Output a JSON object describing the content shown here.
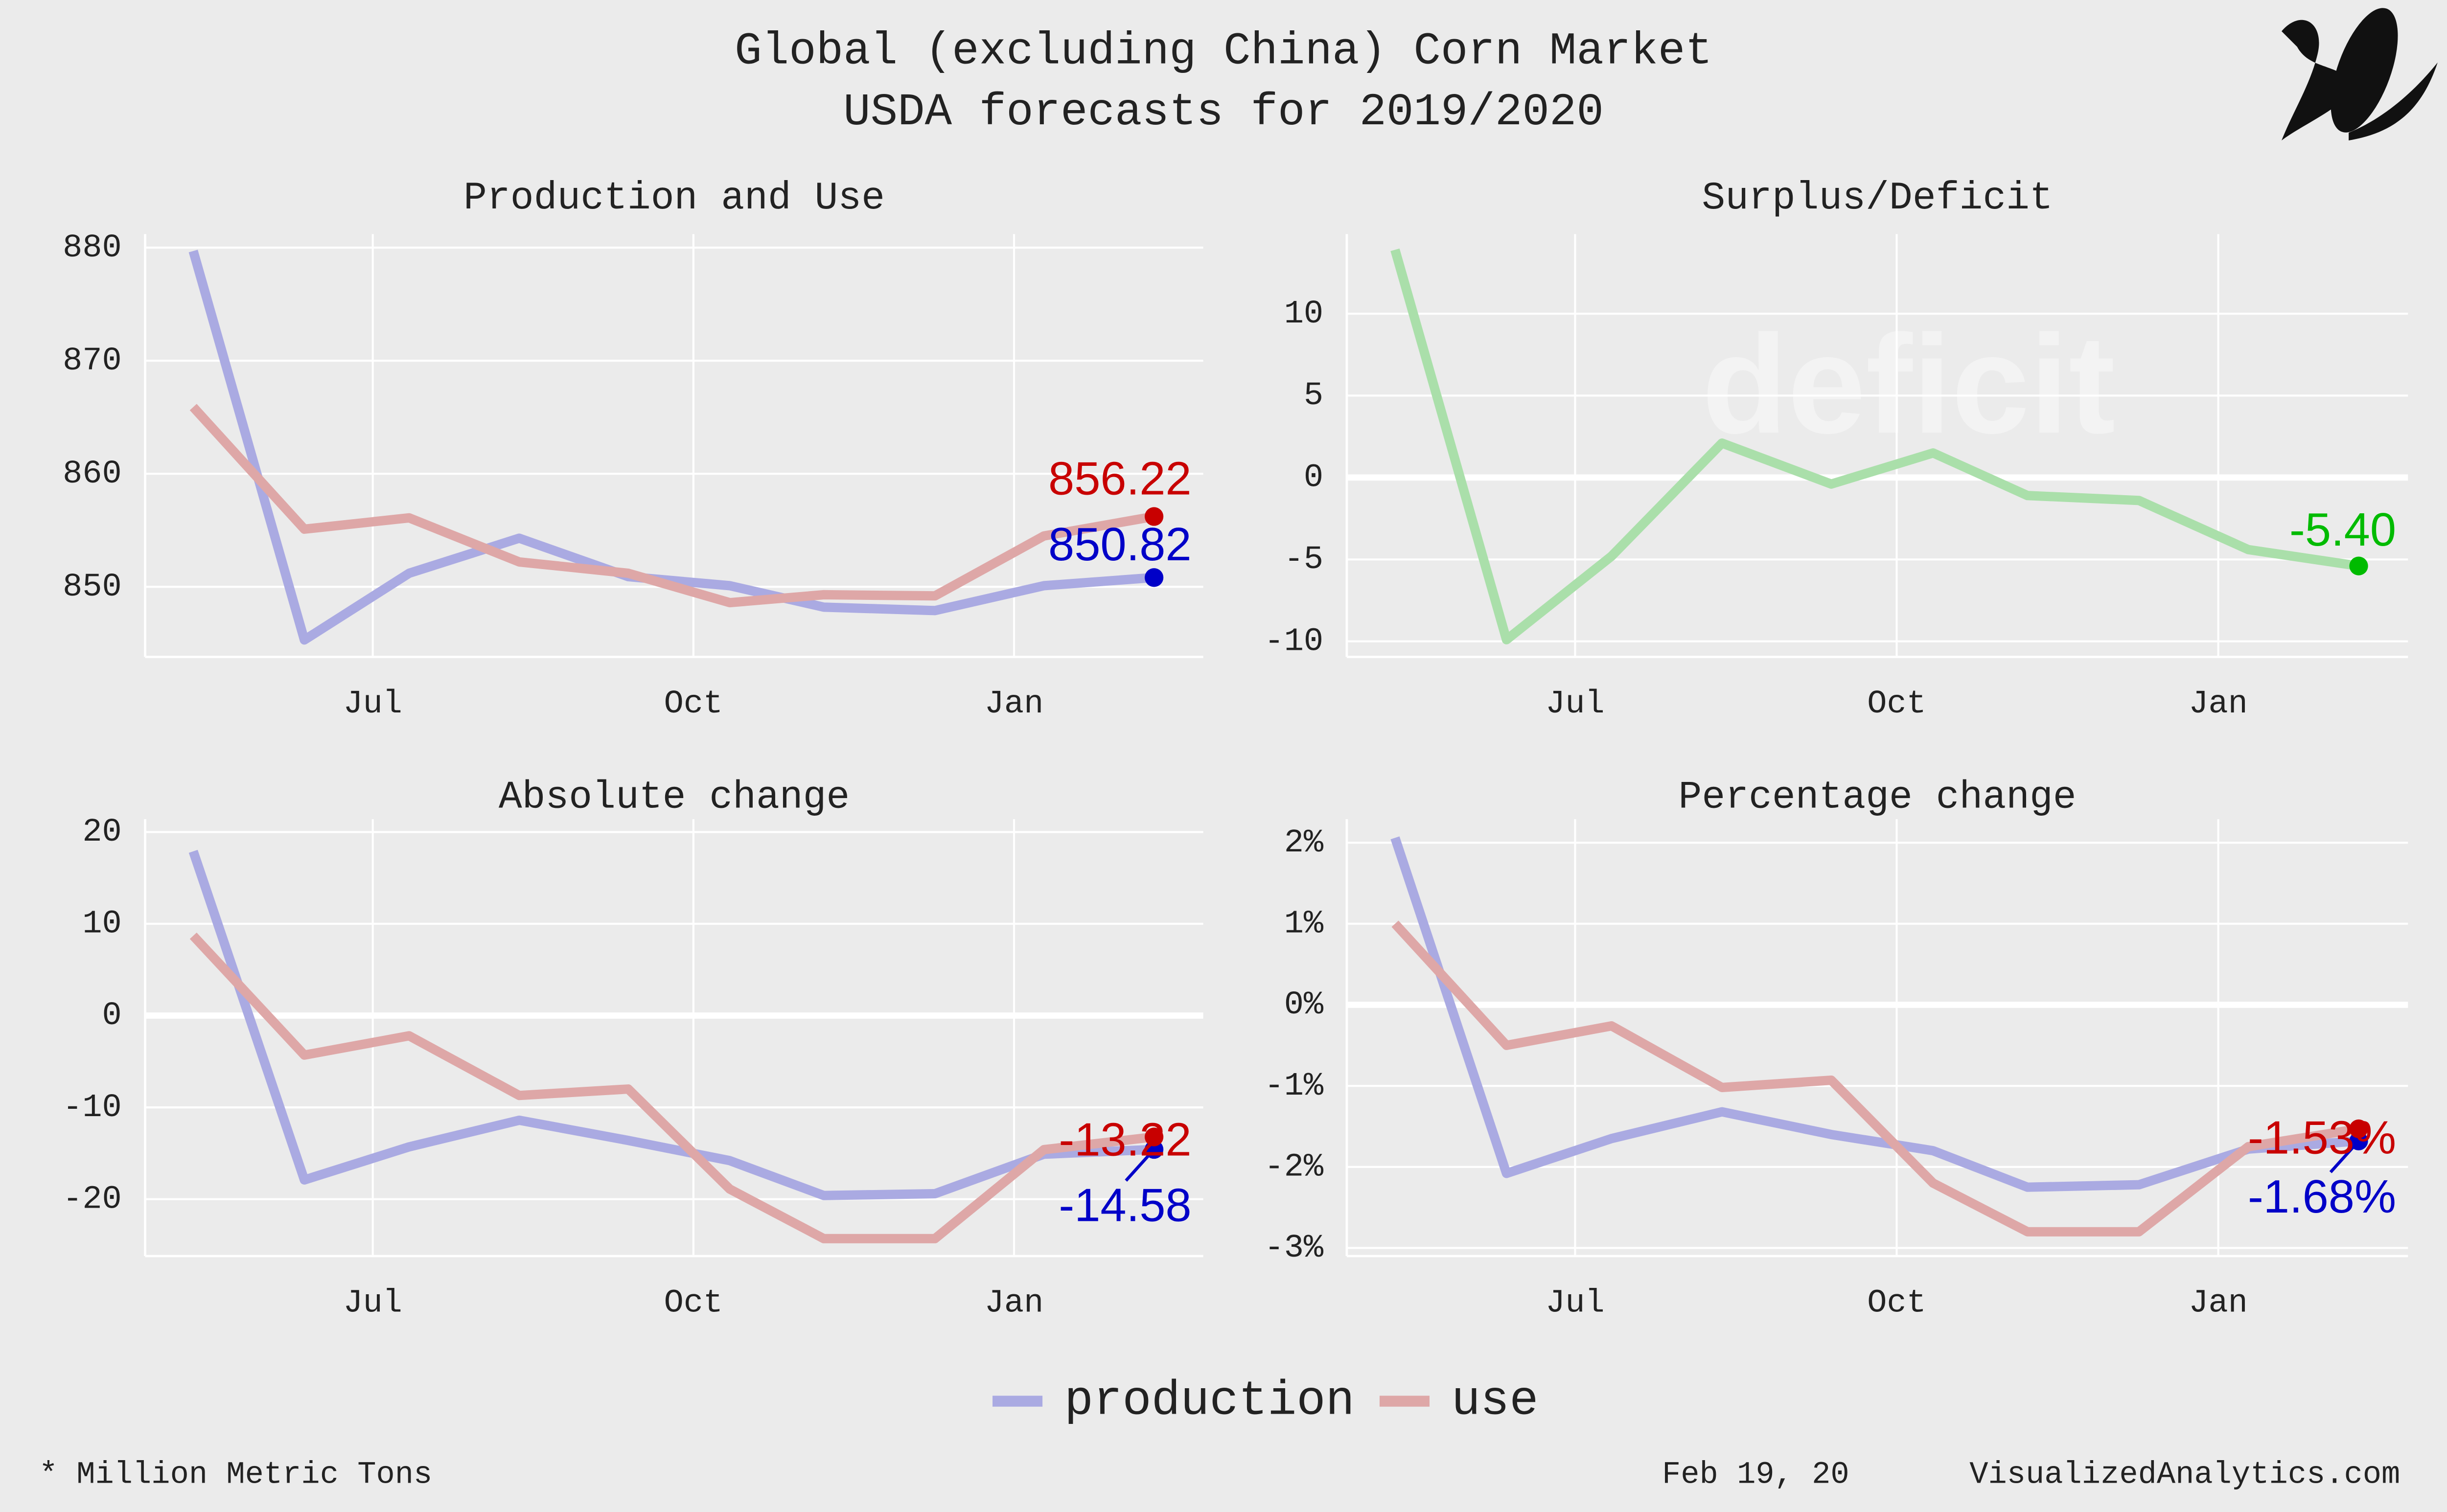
{
  "header": {
    "title": "Global (excluding China) Corn Market",
    "subtitle": "USDA forecasts for 2019/2020"
  },
  "footer": {
    "note": "* Million Metric Tons",
    "date": "Feb 19, 20",
    "site": "VisualizedAnalytics.com"
  },
  "chart_data": [
    {
      "type": "line",
      "title": "Production and Use",
      "x": [
        5.32,
        6.36,
        7.34,
        8.37,
        9.39,
        10.34,
        11.22,
        12.26,
        13.28,
        14.31
      ],
      "xlim": [
        4.87,
        14.77
      ],
      "xticks": [
        {
          "value": 7,
          "label": "Jul"
        },
        {
          "value": 10,
          "label": "Oct"
        },
        {
          "value": 13,
          "label": "Jan"
        }
      ],
      "ylim": [
        843.8,
        881.2
      ],
      "yticks": [
        850,
        860,
        870,
        880
      ],
      "grid": true,
      "series": [
        {
          "name": "production",
          "color": "#aaaae2",
          "marker_color": "#0000c8",
          "values": [
            879.7,
            845.3,
            851.2,
            854.3,
            850.9,
            850.1,
            848.2,
            847.9,
            850.1,
            850.82
          ]
        },
        {
          "name": "use",
          "color": "#dea7a7",
          "marker_color": "#c80000",
          "values": [
            865.9,
            855.1,
            856.1,
            852.2,
            851.2,
            848.6,
            849.3,
            849.2,
            854.5,
            856.22
          ]
        }
      ]
    },
    {
      "type": "line",
      "title": "Surplus/Deficit",
      "watermark": "deficit",
      "x": [
        5.32,
        6.36,
        7.34,
        8.37,
        9.39,
        10.34,
        11.22,
        12.26,
        13.28,
        14.31
      ],
      "xlim": [
        4.87,
        14.77
      ],
      "xticks": [
        {
          "value": 7,
          "label": "Jul"
        },
        {
          "value": 10,
          "label": "Oct"
        },
        {
          "value": 13,
          "label": "Jan"
        }
      ],
      "ylim": [
        -10.95,
        14.86
      ],
      "yticks": [
        -10,
        -5,
        0,
        5,
        10
      ],
      "grid": true,
      "zero_line": true,
      "series": [
        {
          "name": "surplus/deficit",
          "color": "#aadfaa",
          "marker_color": "#00bb00",
          "values": [
            13.9,
            -9.9,
            -4.8,
            2.1,
            -0.4,
            1.5,
            -1.1,
            -1.4,
            -4.4,
            -5.4
          ],
          "value_labels": [
            null,
            null,
            null,
            null,
            null,
            null,
            null,
            null,
            null,
            "-5.40"
          ]
        }
      ]
    },
    {
      "type": "line",
      "title": "Absolute change",
      "x": [
        5.32,
        6.36,
        7.34,
        8.37,
        9.39,
        10.34,
        11.22,
        12.26,
        13.28,
        14.31
      ],
      "xlim": [
        4.87,
        14.77
      ],
      "xticks": [
        {
          "value": 7,
          "label": "Jul"
        },
        {
          "value": 10,
          "label": "Oct"
        },
        {
          "value": 13,
          "label": "Jan"
        }
      ],
      "ylim": [
        -26.2,
        21.4
      ],
      "yticks": [
        -20,
        -10,
        0,
        10,
        20
      ],
      "grid": true,
      "zero_line": true,
      "series": [
        {
          "name": "production",
          "color": "#aaaae2",
          "marker_color": "#0000c8",
          "values": [
            17.9,
            -17.9,
            -14.3,
            -11.4,
            -13.6,
            -15.8,
            -19.6,
            -19.4,
            -15.1,
            -14.58
          ]
        },
        {
          "name": "use",
          "color": "#dea7a7",
          "marker_color": "#c80000",
          "values": [
            8.7,
            -4.3,
            -2.2,
            -8.7,
            -8.0,
            -18.9,
            -24.3,
            -24.3,
            -14.6,
            -13.22
          ]
        }
      ]
    },
    {
      "type": "line",
      "title": "Percentage change",
      "x": [
        5.32,
        6.36,
        7.34,
        8.37,
        9.39,
        10.34,
        11.22,
        12.26,
        13.28,
        14.31
      ],
      "xlim": [
        4.87,
        14.77
      ],
      "xticks": [
        {
          "value": 7,
          "label": "Jul"
        },
        {
          "value": 10,
          "label": "Oct"
        },
        {
          "value": 13,
          "label": "Jan"
        }
      ],
      "ylim": [
        -3.1,
        2.29
      ],
      "yticks": [
        {
          "value": -3,
          "label": "-3%"
        },
        {
          "value": -2,
          "label": "-2%"
        },
        {
          "value": -1,
          "label": "-1%"
        },
        {
          "value": 0,
          "label": "0%"
        },
        {
          "value": 1,
          "label": "1%"
        },
        {
          "value": 2,
          "label": "2%"
        }
      ],
      "grid": true,
      "zero_line": true,
      "series": [
        {
          "name": "production",
          "color": "#aaaae2",
          "marker_color": "#0000c8",
          "values": [
            2.06,
            -2.08,
            -1.65,
            -1.32,
            -1.6,
            -1.8,
            -2.25,
            -2.22,
            -1.78,
            -1.68
          ],
          "value_labels": [
            null,
            null,
            null,
            null,
            null,
            null,
            null,
            null,
            null,
            "-1.68%"
          ]
        },
        {
          "name": "use",
          "color": "#dea7a7",
          "marker_color": "#c80000",
          "values": [
            1.0,
            -0.5,
            -0.26,
            -1.02,
            -0.93,
            -2.2,
            -2.8,
            -2.8,
            -1.75,
            -1.53
          ],
          "value_labels": [
            null,
            null,
            null,
            null,
            null,
            null,
            null,
            null,
            null,
            "-1.53%"
          ]
        }
      ]
    }
  ]
}
